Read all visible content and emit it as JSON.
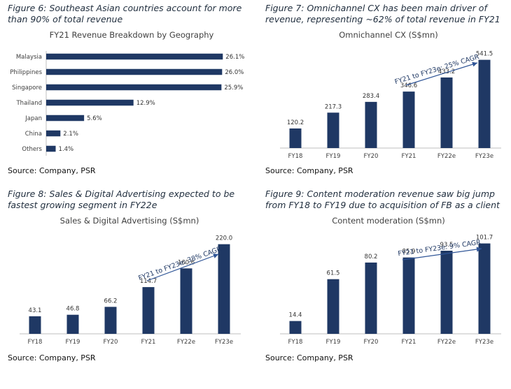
{
  "figures": [
    {
      "caption": "Figure 6: Southeast Asian countries account for more than 90% of total revenue",
      "source": "Source: Company, PSR"
    },
    {
      "caption": "Figure 7: Omnichannel CX has been main driver of revenue, representing ~62% of total revenue in FY21",
      "source": "Source: Company, PSR"
    },
    {
      "caption": "Figure 8: Sales & Digital Advertising expected to be fastest growing segment in FY22e",
      "source": "Source: Company, PSR"
    },
    {
      "caption": "Figure 9: Content moderation revenue saw big jump from FY18 to FY19 due to acquisition of FB as a client",
      "source": "Source: Company, PSR"
    }
  ],
  "colors": {
    "bar": "#1f3864",
    "text": "#404040"
  },
  "chart_data": [
    {
      "type": "bar",
      "orientation": "horizontal",
      "title": "FY21 Revenue Breakdown by Geography",
      "categories": [
        "Malaysia",
        "Philippines",
        "Singapore",
        "Thailand",
        "Japan",
        "China",
        "Others"
      ],
      "values": [
        26.1,
        26.0,
        25.9,
        12.9,
        5.6,
        2.1,
        1.4
      ],
      "value_labels": [
        "26.1%",
        "26.0%",
        "25.9%",
        "12.9%",
        "5.6%",
        "2.1%",
        "1.4%"
      ],
      "xlim": [
        0,
        30
      ]
    },
    {
      "type": "bar",
      "title": "Omnichannel CX (S$mn)",
      "categories": [
        "FY18",
        "FY19",
        "FY20",
        "FY21",
        "FY22e",
        "FY23e"
      ],
      "values": [
        120.2,
        217.3,
        283.4,
        346.6,
        433.2,
        541.5
      ],
      "value_labels": [
        "120.2",
        "217.3",
        "283.4",
        "346.6",
        "433.2",
        "541.5"
      ],
      "annotation": "FY21 to FY23e: 25% CAGR",
      "ylim": [
        0,
        600
      ]
    },
    {
      "type": "bar",
      "title": "Sales & Digital Advertising (S$mn)",
      "categories": [
        "FY18",
        "FY19",
        "FY20",
        "FY21",
        "FY22e",
        "FY23e"
      ],
      "values": [
        43.1,
        46.8,
        66.2,
        114.7,
        160.6,
        220.0
      ],
      "value_labels": [
        "43.1",
        "46.8",
        "66.2",
        "114.7",
        "160.6",
        "220.0"
      ],
      "annotation": "FY21 to FY23e: 38% CAGR",
      "ylim": [
        0,
        240
      ]
    },
    {
      "type": "bar",
      "title": "Content moderation (S$mn)",
      "categories": [
        "FY18",
        "FY19",
        "FY20",
        "FY21",
        "FY22e",
        "FY23e"
      ],
      "values": [
        14.4,
        61.5,
        80.2,
        85.9,
        93.5,
        101.7
      ],
      "value_labels": [
        "14.4",
        "61.5",
        "80.2",
        "85.9",
        "93.5",
        "101.7"
      ],
      "annotation": "FY21 to FY23e: 9% CAGR",
      "ylim": [
        0,
        110
      ]
    }
  ]
}
